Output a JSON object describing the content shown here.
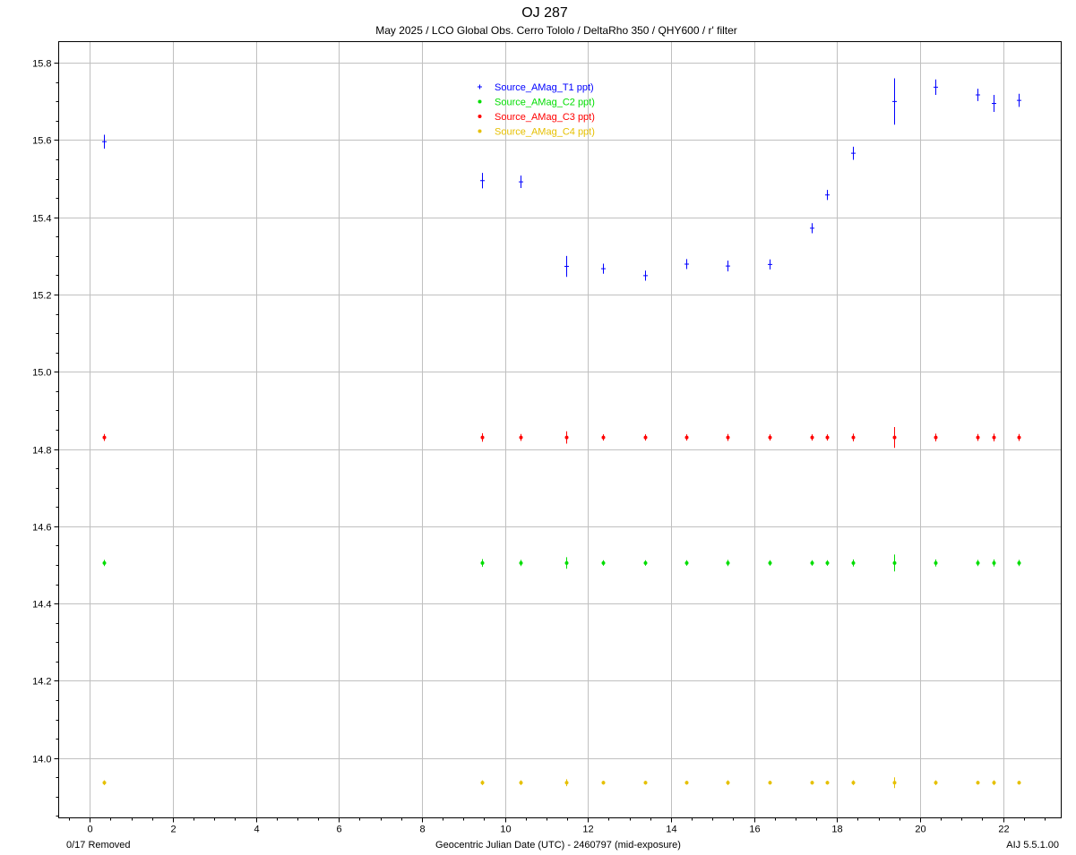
{
  "chart_data": {
    "type": "scatter",
    "title": "OJ 287",
    "subtitle": "May 2025 / LCO Global Obs. Cerro Tololo / DeltaRho 350 / QHY600 / r' filter",
    "xlabel": "Geocentric Julian Date (UTC) - 2460797 (mid-exposure)",
    "ylabel": "",
    "xlim": [
      -0.75,
      23.4
    ],
    "ylim": [
      13.845,
      15.855
    ],
    "xticks": [
      0,
      2,
      4,
      6,
      8,
      10,
      12,
      14,
      16,
      18,
      20,
      22
    ],
    "yticks": [
      14.0,
      14.2,
      14.4,
      14.6,
      14.8,
      15.0,
      15.2,
      15.4,
      15.6,
      15.8
    ],
    "ytick_labels": [
      "14.0",
      "14.2",
      "14.4",
      "14.6",
      "14.8",
      "15.0",
      "15.2",
      "15.4",
      "15.6",
      "15.8"
    ],
    "grid": true,
    "legend_position": "top-center",
    "x": [
      0.35,
      9.45,
      10.37,
      11.47,
      12.37,
      13.37,
      14.37,
      15.37,
      16.38,
      17.38,
      17.75,
      18.38,
      19.38,
      20.37,
      21.38,
      21.76,
      22.38
    ],
    "series": [
      {
        "name": "Source_AMag_T1 ppt)",
        "color": "#0000ff",
        "marker": "+",
        "values": [
          15.596,
          15.495,
          15.492,
          15.273,
          15.267,
          15.249,
          15.279,
          15.274,
          15.278,
          15.372,
          15.458,
          15.566,
          15.7,
          15.737,
          15.717,
          15.695,
          15.703
        ],
        "errors": [
          0.018,
          0.02,
          0.016,
          0.027,
          0.013,
          0.013,
          0.013,
          0.014,
          0.013,
          0.013,
          0.013,
          0.017,
          0.06,
          0.02,
          0.016,
          0.022,
          0.017
        ]
      },
      {
        "name": "Source_AMag_C2 ppt)",
        "color": "#00dd00",
        "marker": "circle",
        "values": [
          14.505,
          14.505,
          14.505,
          14.505,
          14.505,
          14.505,
          14.505,
          14.505,
          14.505,
          14.505,
          14.505,
          14.505,
          14.505,
          14.505,
          14.505,
          14.505,
          14.505
        ],
        "errors": [
          0.008,
          0.01,
          0.008,
          0.015,
          0.007,
          0.007,
          0.007,
          0.008,
          0.007,
          0.007,
          0.007,
          0.009,
          0.022,
          0.009,
          0.008,
          0.009,
          0.008
        ]
      },
      {
        "name": "Source_AMag_C3 ppt)",
        "color": "#ff0000",
        "marker": "circle",
        "values": [
          14.83,
          14.83,
          14.83,
          14.83,
          14.83,
          14.83,
          14.83,
          14.83,
          14.83,
          14.83,
          14.83,
          14.83,
          14.83,
          14.83,
          14.83,
          14.83,
          14.83
        ],
        "errors": [
          0.009,
          0.011,
          0.009,
          0.016,
          0.008,
          0.008,
          0.008,
          0.009,
          0.008,
          0.008,
          0.008,
          0.01,
          0.027,
          0.01,
          0.009,
          0.01,
          0.009
        ]
      },
      {
        "name": "Source_AMag_C4 ppt)",
        "color": "#e6c000",
        "marker": "circle",
        "values": [
          13.936,
          13.936,
          13.936,
          13.936,
          13.936,
          13.936,
          13.936,
          13.936,
          13.936,
          13.936,
          13.936,
          13.936,
          13.936,
          13.936,
          13.936,
          13.936,
          13.936
        ],
        "errors": [
          0.006,
          0.006,
          0.006,
          0.009,
          0.005,
          0.005,
          0.005,
          0.006,
          0.005,
          0.005,
          0.005,
          0.006,
          0.014,
          0.006,
          0.005,
          0.006,
          0.005
        ]
      }
    ]
  },
  "footer": {
    "left": "0/17 Removed",
    "right": "AIJ 5.5.1.00"
  }
}
